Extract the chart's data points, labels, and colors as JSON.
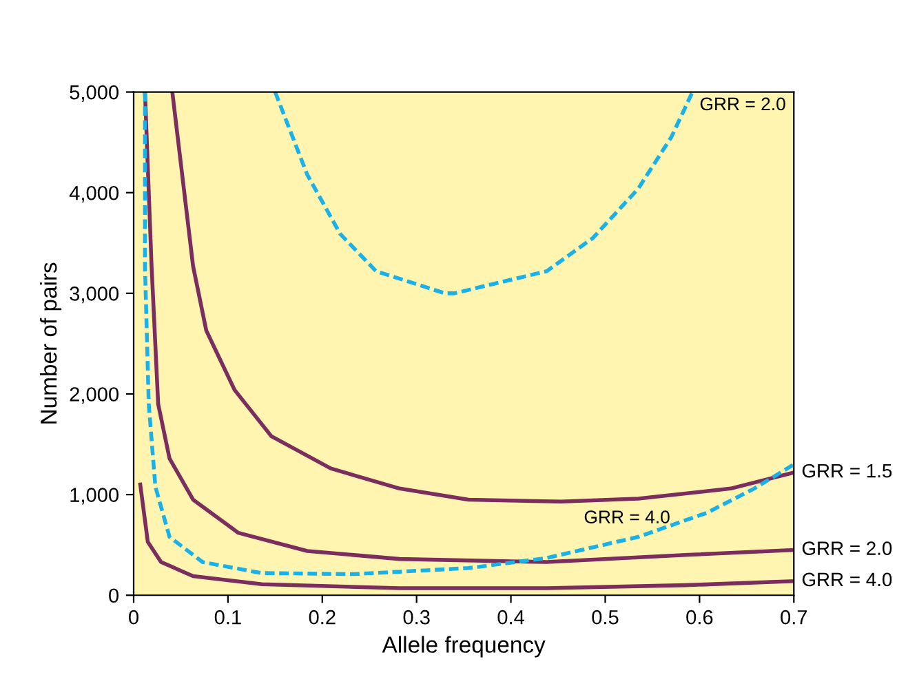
{
  "chart_data": {
    "type": "line",
    "xlabel": "Allele frequency",
    "ylabel": "Number of pairs",
    "xlim": [
      0,
      0.7
    ],
    "ylim": [
      0,
      5000
    ],
    "xticks": [
      0,
      0.1,
      0.2,
      0.3,
      0.4,
      0.5,
      0.6,
      0.7
    ],
    "yticks": [
      {
        "value": 0,
        "label": "0"
      },
      {
        "value": 1000,
        "label": "1,000"
      },
      {
        "value": 2000,
        "label": "2,000"
      },
      {
        "value": 3000,
        "label": "3,000"
      },
      {
        "value": 4000,
        "label": "4,000"
      },
      {
        "value": 5000,
        "label": "5,000"
      }
    ],
    "grid": false,
    "legend": false,
    "marker": "none",
    "series": [
      {
        "color": "#7b2d5e",
        "line_style": "solid",
        "x": [
          0.041,
          0.063,
          0.077,
          0.107,
          0.146,
          0.209,
          0.282,
          0.355,
          0.453,
          0.535,
          0.633,
          0.7
        ],
        "values": [
          5000,
          3270,
          2630,
          2040,
          1580,
          1260,
          1060,
          950,
          930,
          960,
          1060,
          1220
        ]
      },
      {
        "color": "#7b2d5e",
        "line_style": "solid",
        "x": [
          0.012,
          0.019,
          0.026,
          0.038,
          0.063,
          0.111,
          0.184,
          0.282,
          0.438,
          0.585,
          0.7
        ],
        "values": [
          5000,
          3270,
          1900,
          1360,
          950,
          620,
          440,
          360,
          330,
          400,
          450
        ]
      },
      {
        "color": "#7b2d5e",
        "line_style": "solid",
        "x": [
          0.007,
          0.015,
          0.029,
          0.063,
          0.136,
          0.282,
          0.438,
          0.585,
          0.7
        ],
        "values": [
          1100,
          530,
          330,
          190,
          110,
          70,
          70,
          100,
          140
        ]
      },
      {
        "color": "#1ab0e8",
        "line_style": "dashed",
        "x": [
          0.012,
          0.012,
          0.016,
          0.023,
          0.038,
          0.073,
          0.136,
          0.234,
          0.355,
          0.438,
          0.535,
          0.608,
          0.658,
          0.7
        ],
        "values": [
          5000,
          3270,
          1900,
          1080,
          580,
          330,
          220,
          210,
          270,
          370,
          580,
          820,
          1060,
          1300
        ]
      },
      {
        "color": "#1ab0e8",
        "line_style": "dashed",
        "x": [
          0.15,
          0.184,
          0.219,
          0.257,
          0.33,
          0.34,
          0.438,
          0.487,
          0.535,
          0.57,
          0.592
        ],
        "values": [
          5000,
          4180,
          3590,
          3220,
          3000,
          3000,
          3220,
          3550,
          4040,
          4550,
          4990
        ]
      }
    ],
    "annotations": [
      {
        "text": "GRR = 2.0",
        "x": 0.598,
        "y": 4950
      },
      {
        "text": "GRR = 4.0",
        "x": 0.575,
        "y": 640
      },
      {
        "text": "GRR = 1.5",
        "x": 0.7,
        "y": 1220
      },
      {
        "text": "GRR = 2.0",
        "x": 0.7,
        "y": 450
      },
      {
        "text": "GRR = 4.0",
        "x": 0.7,
        "y": 140
      }
    ]
  }
}
